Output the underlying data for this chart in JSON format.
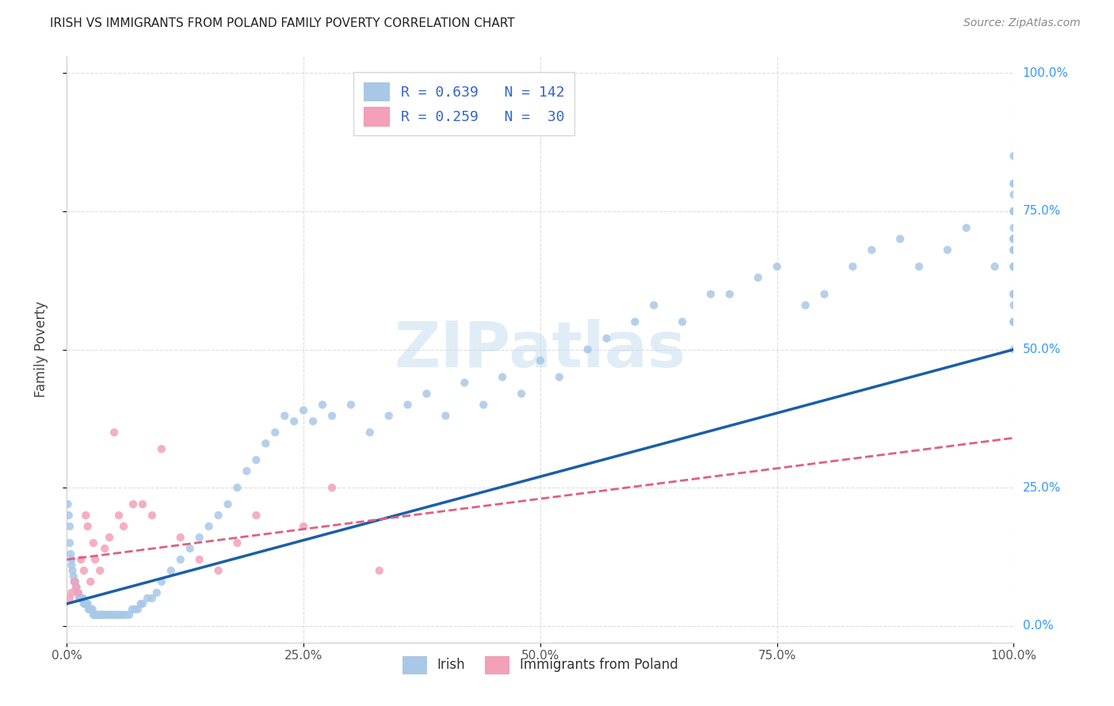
{
  "title": "IRISH VS IMMIGRANTS FROM POLAND FAMILY POVERTY CORRELATION CHART",
  "source": "Source: ZipAtlas.com",
  "ylabel": "Family Poverty",
  "legend_irish_R": "0.639",
  "legend_irish_N": "142",
  "legend_poland_R": "0.259",
  "legend_poland_N": "30",
  "irish_color": "#a8c8e8",
  "poland_color": "#f4a0b8",
  "irish_line_color": "#1a5fa8",
  "poland_line_color": "#e06080",
  "irish_line_slope": 0.46,
  "irish_line_intercept": 4.0,
  "poland_line_slope": 0.22,
  "poland_line_intercept": 12.0,
  "irish_x": [
    0.1,
    0.2,
    0.3,
    0.3,
    0.4,
    0.5,
    0.5,
    0.6,
    0.7,
    0.8,
    0.9,
    1.0,
    1.0,
    1.1,
    1.2,
    1.3,
    1.4,
    1.5,
    1.6,
    1.7,
    1.8,
    1.9,
    2.0,
    2.1,
    2.2,
    2.3,
    2.4,
    2.5,
    2.6,
    2.7,
    2.8,
    2.9,
    3.0,
    3.1,
    3.2,
    3.3,
    3.4,
    3.5,
    3.6,
    3.7,
    3.8,
    3.9,
    4.0,
    4.2,
    4.4,
    4.6,
    4.8,
    5.0,
    5.2,
    5.4,
    5.6,
    5.8,
    6.0,
    6.3,
    6.6,
    6.9,
    7.2,
    7.5,
    7.8,
    8.0,
    8.5,
    9.0,
    9.5,
    10.0,
    11.0,
    12.0,
    13.0,
    14.0,
    15.0,
    16.0,
    17.0,
    18.0,
    19.0,
    20.0,
    21.0,
    22.0,
    23.0,
    24.0,
    25.0,
    26.0,
    27.0,
    28.0,
    30.0,
    32.0,
    34.0,
    36.0,
    38.0,
    40.0,
    42.0,
    44.0,
    46.0,
    48.0,
    50.0,
    52.0,
    55.0,
    57.0,
    60.0,
    62.0,
    65.0,
    68.0,
    70.0,
    73.0,
    75.0,
    78.0,
    80.0,
    83.0,
    85.0,
    88.0,
    90.0,
    93.0,
    95.0,
    98.0,
    100.0,
    100.0,
    100.0,
    100.0,
    100.0,
    100.0,
    100.0,
    100.0,
    100.0,
    100.0,
    100.0,
    100.0,
    100.0,
    100.0,
    100.0,
    100.0,
    100.0,
    100.0,
    100.0,
    100.0,
    100.0,
    100.0,
    100.0,
    100.0,
    100.0,
    100.0,
    100.0,
    100.0,
    100.0,
    100.0
  ],
  "irish_y": [
    22,
    20,
    18,
    15,
    13,
    12,
    11,
    10,
    9,
    8,
    8,
    7,
    7,
    6,
    6,
    5,
    5,
    5,
    5,
    5,
    4,
    4,
    4,
    4,
    4,
    3,
    3,
    3,
    3,
    3,
    2,
    2,
    2,
    2,
    2,
    2,
    2,
    2,
    2,
    2,
    2,
    2,
    2,
    2,
    2,
    2,
    2,
    2,
    2,
    2,
    2,
    2,
    2,
    2,
    2,
    3,
    3,
    3,
    4,
    4,
    5,
    5,
    6,
    8,
    10,
    12,
    14,
    16,
    18,
    20,
    22,
    25,
    28,
    30,
    33,
    35,
    38,
    37,
    39,
    37,
    40,
    38,
    40,
    35,
    38,
    40,
    42,
    38,
    44,
    40,
    45,
    42,
    48,
    45,
    50,
    52,
    55,
    58,
    55,
    60,
    60,
    63,
    65,
    58,
    60,
    65,
    68,
    70,
    65,
    68,
    72,
    65,
    70,
    68,
    75,
    72,
    70,
    75,
    70,
    68,
    65,
    60,
    55,
    58,
    60,
    65,
    70,
    55,
    60,
    50,
    55,
    65,
    70,
    68,
    75,
    80,
    78,
    75,
    80,
    85
  ],
  "polish_x": [
    0.3,
    0.5,
    0.8,
    1.0,
    1.2,
    1.5,
    1.8,
    2.0,
    2.2,
    2.5,
    2.8,
    3.0,
    3.5,
    4.0,
    4.5,
    5.0,
    5.5,
    6.0,
    7.0,
    8.0,
    9.0,
    10.0,
    12.0,
    14.0,
    16.0,
    18.0,
    20.0,
    25.0,
    28.0,
    33.0
  ],
  "polish_y": [
    5,
    6,
    8,
    7,
    6,
    12,
    10,
    20,
    18,
    8,
    15,
    12,
    10,
    14,
    16,
    35,
    20,
    18,
    22,
    22,
    20,
    32,
    16,
    12,
    10,
    15,
    20,
    18,
    25,
    10
  ]
}
